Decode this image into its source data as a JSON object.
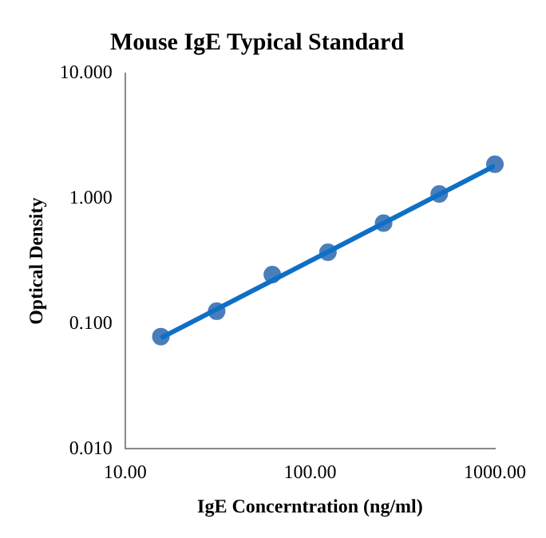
{
  "chart_data": {
    "type": "scatter",
    "title": "Mouse IgE Typical Standard",
    "xlabel": "IgE Concerntration (ng/ml)",
    "ylabel": "Optical Density",
    "log": "xy",
    "grid": false,
    "legend": false,
    "marker": "circle",
    "xlim": [
      10,
      1000
    ],
    "xticks": [
      {
        "value": 10,
        "label": "10.00"
      },
      {
        "value": 100,
        "label": "100.00"
      },
      {
        "value": 1000,
        "label": "1000.00"
      }
    ],
    "ylim": [
      0.01,
      10
    ],
    "yticks": [
      {
        "value": 0.01,
        "label": "0.010"
      },
      {
        "value": 0.1,
        "label": "0.100"
      },
      {
        "value": 1,
        "label": "1.000"
      },
      {
        "value": 10,
        "label": "10.000"
      }
    ],
    "series": [
      {
        "type": "line",
        "color": "#0f6fc6",
        "marker": "none",
        "line_style": "solid",
        "x": [
          15.6,
          1000
        ],
        "values": [
          0.077,
          1.83
        ]
      },
      {
        "color": "#4a7ebb",
        "x": [
          15.6,
          31.25,
          62.5,
          125,
          250,
          500,
          1000
        ],
        "values": [
          0.079,
          0.126,
          0.247,
          0.373,
          0.637,
          1.09,
          1.88
        ]
      }
    ]
  }
}
